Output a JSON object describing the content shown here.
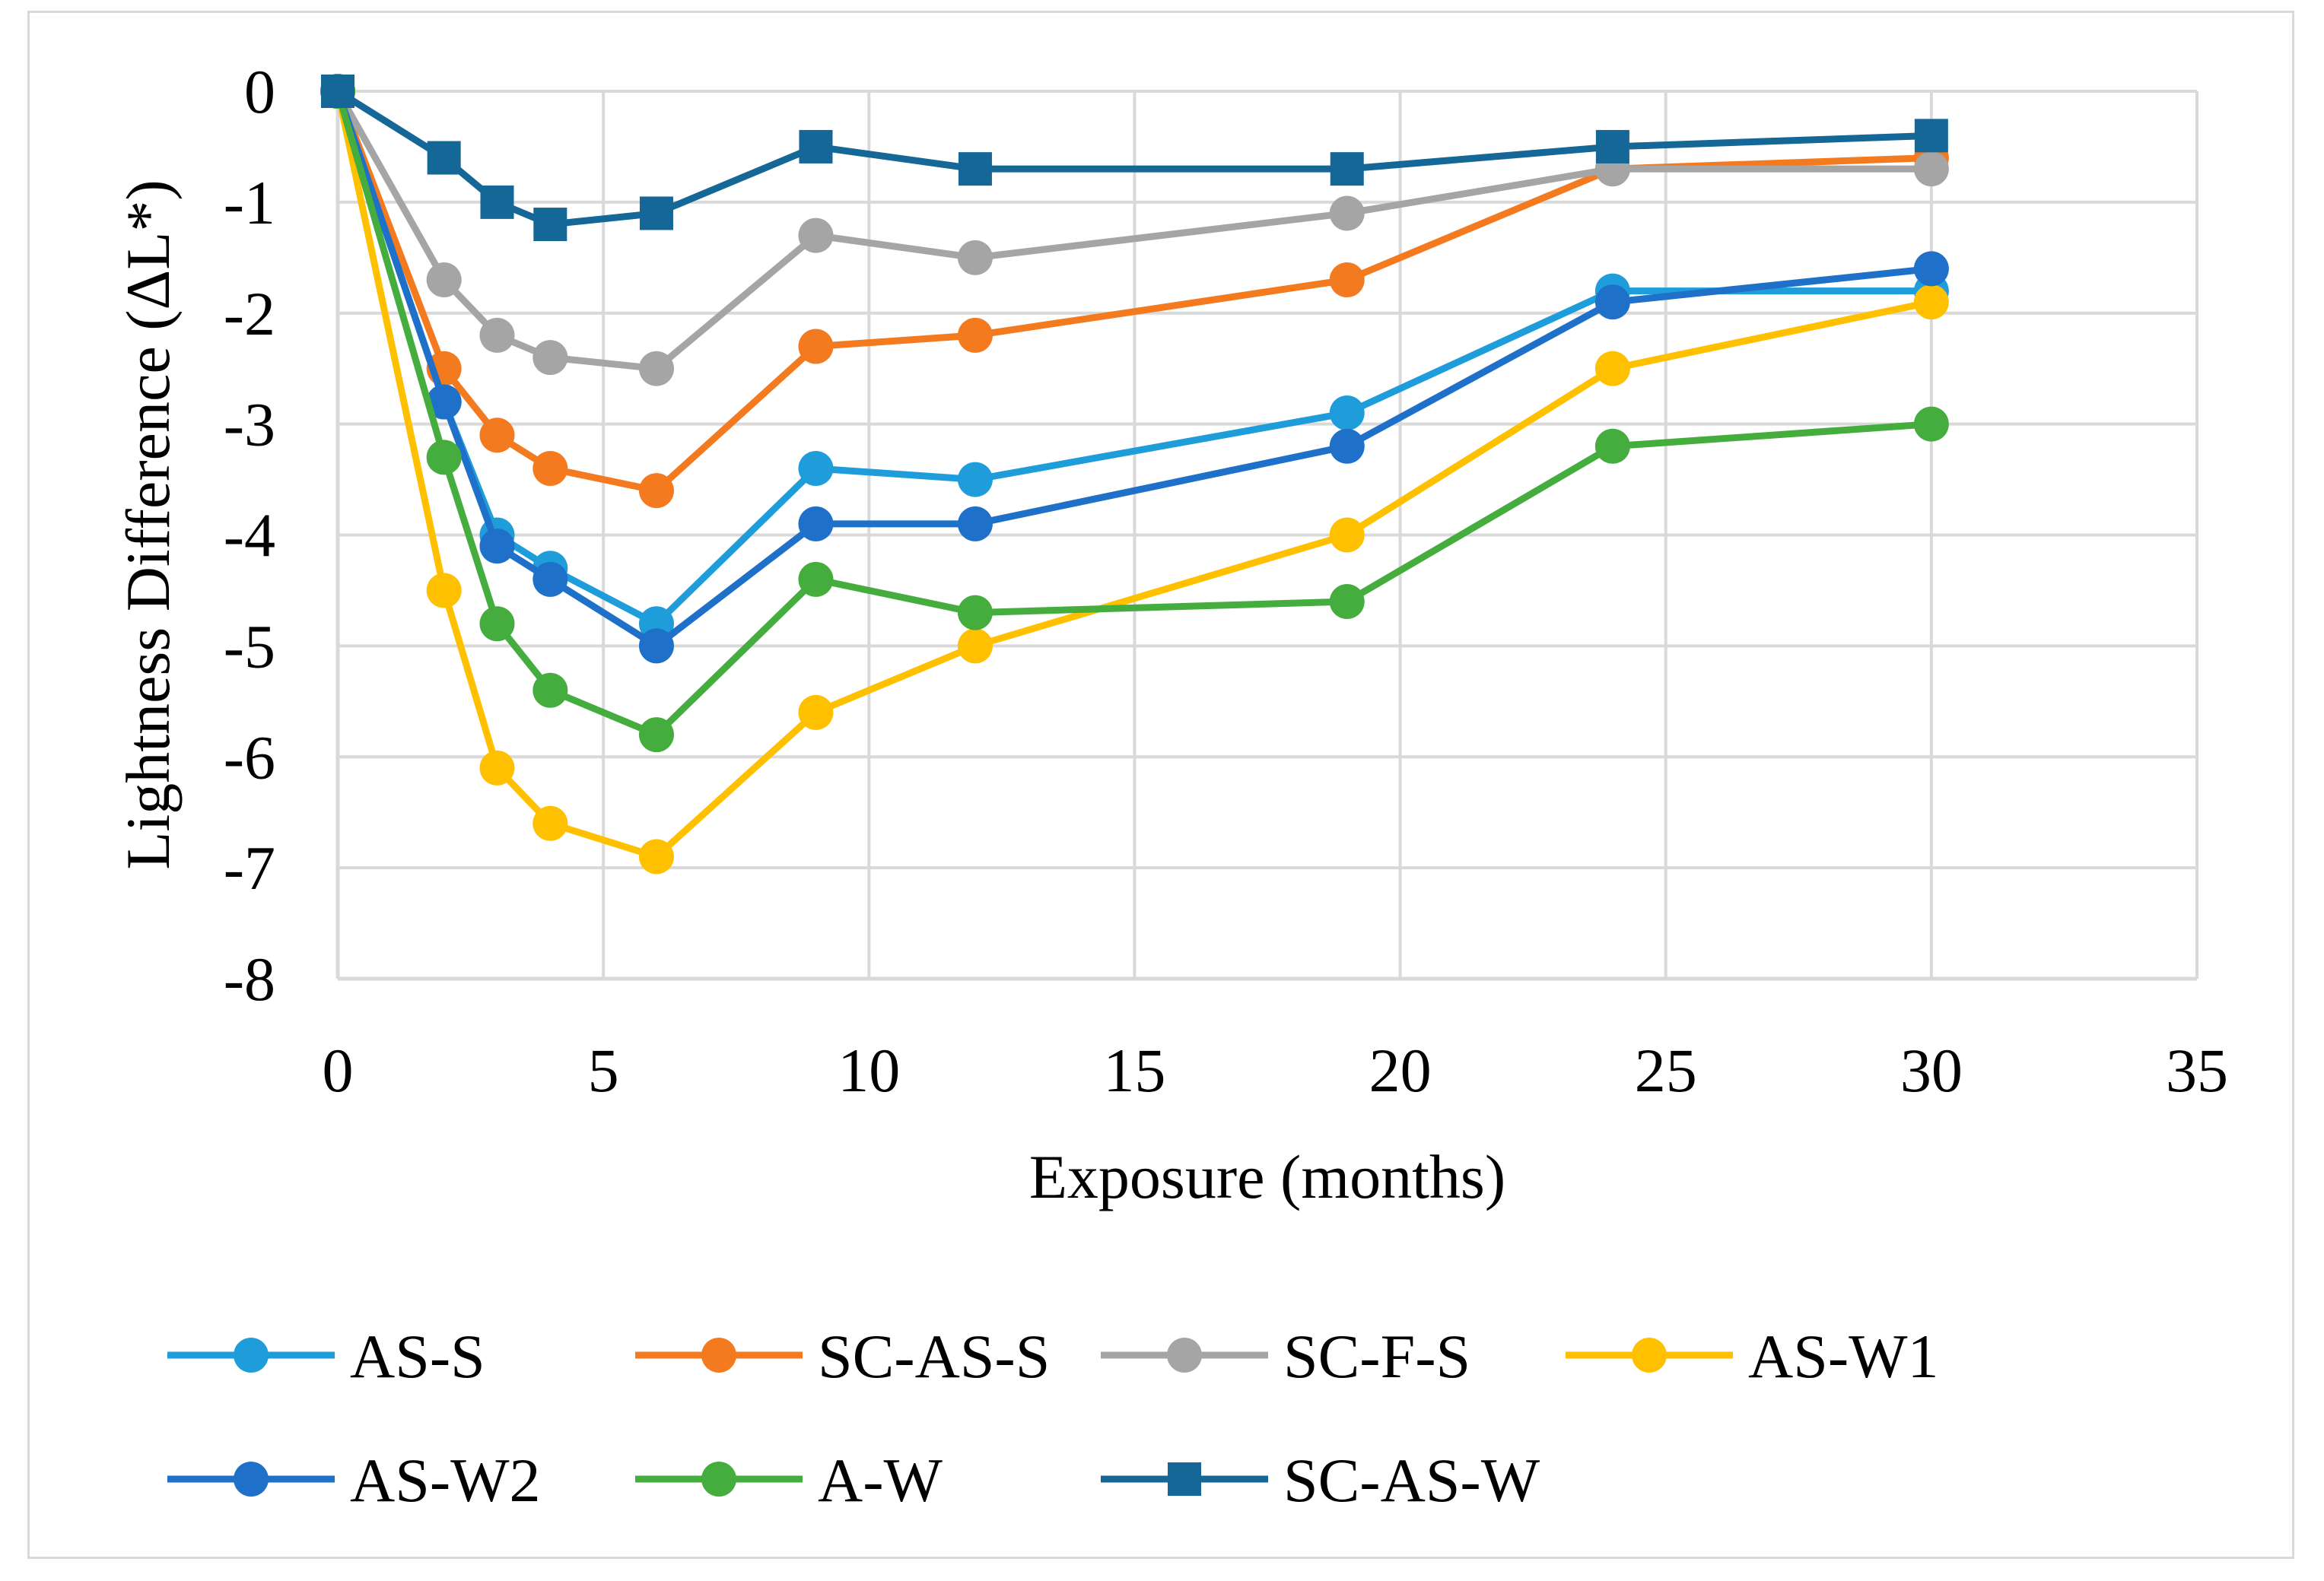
{
  "chart_data": {
    "type": "line",
    "title": "",
    "xlabel": "Exposure (months)",
    "ylabel": "Lightness Difference (ΔL*)",
    "xlim": [
      0,
      35
    ],
    "ylim": [
      -8,
      0
    ],
    "xticks": [
      0,
      5,
      10,
      15,
      20,
      25,
      30,
      35
    ],
    "yticks": [
      0,
      -1,
      -2,
      -3,
      -4,
      -5,
      -6,
      -7,
      -8
    ],
    "grid": true,
    "legend_position": "bottom",
    "x": [
      0,
      2,
      3,
      4,
      6,
      9,
      12,
      19,
      24,
      30
    ],
    "series": [
      {
        "name": "AS-S",
        "color": "#1f9ddb",
        "marker": "circle",
        "values": [
          0,
          -2.8,
          -4.0,
          -4.3,
          -4.8,
          -3.4,
          -3.5,
          -2.9,
          -1.8,
          -1.8
        ]
      },
      {
        "name": "SC-AS-S",
        "color": "#f47a20",
        "marker": "circle",
        "values": [
          0,
          -2.5,
          -3.1,
          -3.4,
          -3.6,
          -2.3,
          -2.2,
          -1.7,
          -0.7,
          -0.6
        ]
      },
      {
        "name": "SC-F-S",
        "color": "#a5a5a5",
        "marker": "circle",
        "values": [
          0,
          -1.7,
          -2.2,
          -2.4,
          -2.5,
          -1.3,
          -1.5,
          -1.1,
          -0.7,
          -0.7
        ]
      },
      {
        "name": "AS-W1",
        "color": "#ffc000",
        "marker": "circle",
        "values": [
          0,
          -4.5,
          -6.1,
          -6.6,
          -6.9,
          -5.6,
          -5.0,
          -4.0,
          -2.5,
          -1.9
        ]
      },
      {
        "name": "AS-W2",
        "color": "#1f70c9",
        "marker": "circle",
        "values": [
          0,
          -2.8,
          -4.1,
          -4.4,
          -5.0,
          -3.9,
          -3.9,
          -3.2,
          -1.9,
          -1.6
        ]
      },
      {
        "name": "A-W",
        "color": "#44ad3e",
        "marker": "circle",
        "values": [
          0,
          -3.3,
          -4.8,
          -5.4,
          -5.8,
          -4.4,
          -4.7,
          -4.6,
          -3.2,
          -3.0
        ]
      },
      {
        "name": "SC-AS-W",
        "color": "#156797",
        "marker": "square",
        "values": [
          0,
          -0.6,
          -1.0,
          -1.2,
          -1.1,
          -0.5,
          -0.7,
          -0.7,
          -0.5,
          -0.4
        ]
      }
    ]
  }
}
